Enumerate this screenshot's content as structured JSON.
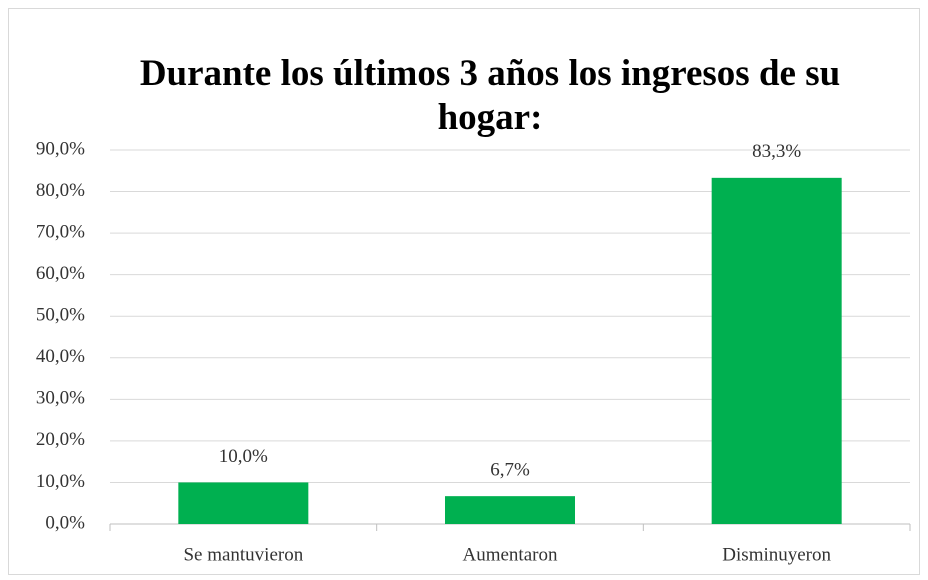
{
  "chart_data": {
    "type": "bar",
    "title": "Durante los últimos 3 años los ingresos de su hogar:",
    "categories": [
      "Se mantuvieron",
      "Aumentaron",
      "Disminuyeron"
    ],
    "values": [
      10.0,
      6.7,
      83.3
    ],
    "value_labels": [
      "10,0%",
      "6,7%",
      "83,3%"
    ],
    "color": "#00b050",
    "ylim": [
      0,
      90
    ],
    "yticks": [
      {
        "value": 0,
        "label": "0,0%"
      },
      {
        "value": 10,
        "label": "10,0%"
      },
      {
        "value": 20,
        "label": "20,0%"
      },
      {
        "value": 30,
        "label": "30,0%"
      },
      {
        "value": 40,
        "label": "40,0%"
      },
      {
        "value": 50,
        "label": "50,0%"
      },
      {
        "value": 60,
        "label": "60,0%"
      },
      {
        "value": 70,
        "label": "70,0%"
      },
      {
        "value": 80,
        "label": "80,0%"
      },
      {
        "value": 90,
        "label": "90,0%"
      }
    ],
    "grid": true
  }
}
